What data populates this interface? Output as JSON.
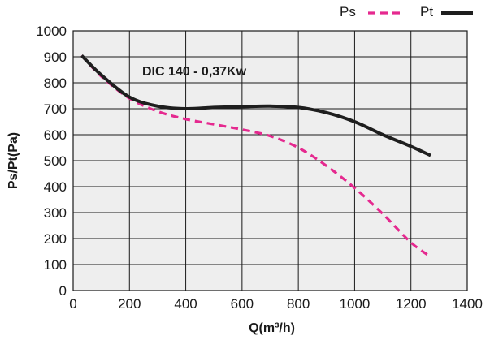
{
  "chart_data": {
    "type": "line",
    "title": "",
    "annotation": "DIC 140 - 0,37Kw",
    "xlabel": "Q(m³/h)",
    "ylabel": "Ps/Pt(Pa)",
    "xlim": [
      0,
      1400
    ],
    "ylim": [
      0,
      1000
    ],
    "xticks": [
      0,
      200,
      400,
      600,
      800,
      1000,
      1200,
      1400
    ],
    "yticks": [
      0,
      100,
      200,
      300,
      400,
      500,
      600,
      700,
      800,
      900,
      1000
    ],
    "grid": true,
    "legend_position": "top-right",
    "background_color": "#eeeeee",
    "series": [
      {
        "name": "Ps",
        "style": "dashed",
        "color": "#e5298f",
        "x": [
          30,
          100,
          200,
          300,
          400,
          500,
          600,
          700,
          800,
          900,
          1000,
          1100,
          1200,
          1270
        ],
        "y": [
          905,
          825,
          740,
          690,
          660,
          640,
          620,
          595,
          550,
          480,
          395,
          295,
          185,
          130
        ]
      },
      {
        "name": "Pt",
        "style": "solid",
        "color": "#1e1e1e",
        "x": [
          30,
          100,
          200,
          300,
          400,
          500,
          600,
          700,
          800,
          900,
          1000,
          1100,
          1200,
          1270
        ],
        "y": [
          905,
          830,
          745,
          710,
          700,
          705,
          708,
          710,
          705,
          685,
          650,
          600,
          555,
          520
        ]
      }
    ]
  }
}
